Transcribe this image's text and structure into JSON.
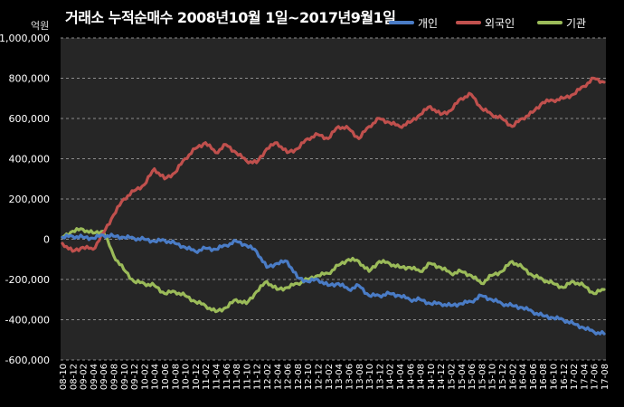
{
  "title": "거래소 누적순매수 2008년10월 1일~2017년9월1일",
  "unit": "억원",
  "colors": {
    "background": "#000000",
    "plot_bg": "#262626",
    "grid": "#8c8c8c",
    "개인": "#4a7cc6",
    "외국인": "#c0504d",
    "기관": "#9bbb59"
  },
  "chart_data": {
    "type": "line",
    "title": "거래소 누적순매수 2008년10월 1일~2017년9월1일",
    "ylabel": "억원",
    "ylim": [
      -600000,
      1000000
    ],
    "y_ticks": [
      "-600,000",
      "-400,000",
      "-200,000",
      "0",
      "200,000",
      "400,000",
      "600,000",
      "800,000",
      "1,000,000"
    ],
    "y_tick_values": [
      -600000,
      -400000,
      -200000,
      0,
      200000,
      400000,
      600000,
      800000,
      1000000
    ],
    "grid": "horizontal, dashed",
    "legend_position": "top-right",
    "categories": [
      "08-10",
      "08-12",
      "09-02",
      "09-04",
      "09-06",
      "09-08",
      "09-10",
      "09-12",
      "10-02",
      "10-04",
      "10-06",
      "10-08",
      "10-10",
      "10-12",
      "11-02",
      "11-04",
      "11-06",
      "11-08",
      "11-10",
      "11-12",
      "12-02",
      "12-04",
      "12-06",
      "12-08",
      "12-10",
      "12-12",
      "13-02",
      "13-04",
      "13-06",
      "13-08",
      "13-10",
      "13-12",
      "14-02",
      "14-04",
      "14-06",
      "14-08",
      "14-10",
      "14-12",
      "15-02",
      "15-04",
      "15-06",
      "15-08",
      "15-10",
      "15-12",
      "16-02",
      "16-04",
      "16-06",
      "16-08",
      "16-10",
      "16-12",
      "17-02",
      "17-04",
      "17-06",
      "17-08"
    ],
    "series": [
      {
        "name": "개인",
        "color": "#4a7cc6",
        "values": [
          10000,
          15000,
          10000,
          5000,
          20000,
          15000,
          10000,
          5000,
          0,
          -10000,
          -5000,
          -20000,
          -40000,
          -60000,
          -45000,
          -50000,
          -30000,
          -10000,
          -30000,
          -60000,
          -140000,
          -120000,
          -110000,
          -190000,
          -210000,
          -200000,
          -230000,
          -220000,
          -250000,
          -230000,
          -280000,
          -280000,
          -270000,
          -280000,
          -300000,
          -300000,
          -320000,
          -320000,
          -330000,
          -320000,
          -310000,
          -280000,
          -300000,
          -320000,
          -330000,
          -340000,
          -360000,
          -380000,
          -390000,
          -400000,
          -420000,
          -440000,
          -460000,
          -470000
        ]
      },
      {
        "name": "외국인",
        "color": "#c0504d",
        "values": [
          -20000,
          -60000,
          -40000,
          -50000,
          30000,
          120000,
          200000,
          240000,
          270000,
          350000,
          300000,
          330000,
          400000,
          450000,
          480000,
          430000,
          470000,
          430000,
          390000,
          380000,
          450000,
          480000,
          430000,
          450000,
          500000,
          520000,
          500000,
          560000,
          550000,
          500000,
          560000,
          600000,
          580000,
          560000,
          580000,
          620000,
          660000,
          620000,
          640000,
          700000,
          720000,
          650000,
          620000,
          600000,
          560000,
          600000,
          630000,
          680000,
          690000,
          700000,
          720000,
          760000,
          800000,
          780000
        ]
      },
      {
        "name": "기관",
        "color": "#9bbb59",
        "values": [
          10000,
          40000,
          50000,
          30000,
          40000,
          -80000,
          -150000,
          -210000,
          -220000,
          -230000,
          -270000,
          -260000,
          -280000,
          -310000,
          -330000,
          -360000,
          -340000,
          -300000,
          -320000,
          -260000,
          -210000,
          -250000,
          -240000,
          -220000,
          -200000,
          -180000,
          -170000,
          -130000,
          -100000,
          -110000,
          -160000,
          -110000,
          -120000,
          -140000,
          -140000,
          -160000,
          -120000,
          -140000,
          -170000,
          -160000,
          -180000,
          -220000,
          -180000,
          -160000,
          -110000,
          -140000,
          -180000,
          -200000,
          -220000,
          -240000,
          -210000,
          -230000,
          -270000,
          -250000
        ]
      }
    ]
  }
}
